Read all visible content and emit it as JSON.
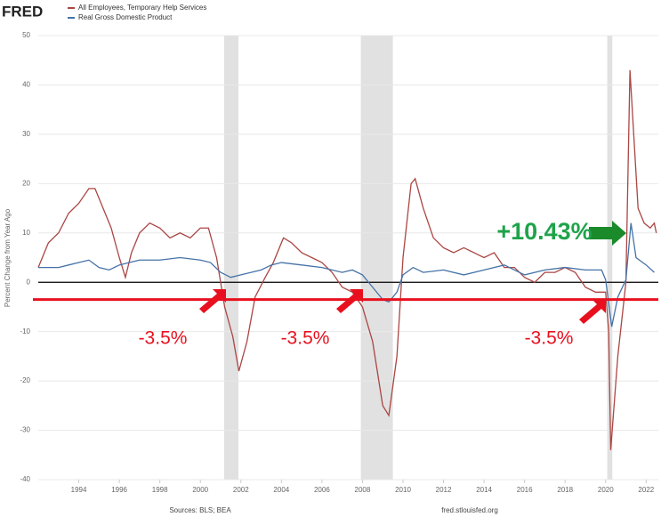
{
  "chart_data": {
    "type": "line",
    "logo": "FRED",
    "y_label": "Percent Change from Year Ago",
    "source": "Sources: BLS; BEA",
    "site": "fred.stlouisfed.org",
    "xlim": [
      1992,
      2022.6
    ],
    "ylim": [
      -40,
      50
    ],
    "xticks": [
      1994,
      1996,
      1998,
      2000,
      2002,
      2004,
      2006,
      2008,
      2010,
      2012,
      2014,
      2016,
      2018,
      2020,
      2022
    ],
    "yticks": [
      -40,
      -30,
      -20,
      -10,
      0,
      10,
      20,
      30,
      40,
      50
    ],
    "grid": true,
    "zero_line": 0,
    "reference_line": -3.5,
    "recessions": [
      [
        2001.17,
        2001.88
      ],
      [
        2007.92,
        2009.5
      ],
      [
        2020.08,
        2020.33
      ]
    ],
    "annotations": [
      "-3.5%",
      "-3.5%",
      "-3.5%",
      "+10.43%"
    ],
    "series": [
      {
        "name": "All Employees, Temporary Help Services",
        "color": "#aa4643",
        "x": [
          1992,
          1992.5,
          1993,
          1993.5,
          1994,
          1994.5,
          1994.8,
          1995.2,
          1995.6,
          1996,
          1996.3,
          1996.6,
          1997,
          1997.5,
          1998,
          1998.5,
          1999,
          1999.5,
          2000,
          2000.4,
          2000.8,
          2001.2,
          2001.6,
          2001.9,
          2002.3,
          2002.7,
          2003.2,
          2003.6,
          2004.1,
          2004.5,
          2005,
          2005.5,
          2006,
          2006.5,
          2007,
          2007.5,
          2008,
          2008.5,
          2009,
          2009.3,
          2009.7,
          2010,
          2010.4,
          2010.6,
          2011,
          2011.5,
          2012,
          2012.5,
          2013,
          2013.5,
          2014,
          2014.5,
          2015,
          2015.5,
          2016,
          2016.5,
          2017,
          2017.5,
          2018,
          2018.5,
          2019,
          2019.5,
          2020,
          2020.15,
          2020.25,
          2020.6,
          2021,
          2021.2,
          2021.6,
          2021.9,
          2022.2,
          2022.4,
          2022.5
        ],
        "values": [
          3,
          8,
          10,
          14,
          16,
          19,
          19,
          15,
          11,
          5,
          1,
          6,
          10,
          12,
          11,
          9,
          10,
          9,
          11,
          11,
          5,
          -5,
          -11,
          -18,
          -12,
          -3,
          1,
          4,
          9,
          8,
          6,
          5,
          4,
          2,
          -1,
          -2,
          -5,
          -12,
          -25,
          -27,
          -15,
          5,
          20,
          21,
          15,
          9,
          7,
          6,
          7,
          6,
          5,
          6,
          3,
          3,
          1,
          0,
          2,
          2,
          3,
          2,
          -1,
          -2,
          -2,
          -10,
          -34,
          -15,
          0,
          43,
          15,
          12,
          11,
          12,
          10
        ]
      },
      {
        "name": "Real Gross Domestic Product",
        "color": "#4572a7",
        "x": [
          1992,
          1993,
          1993.5,
          1994,
          1994.5,
          1995,
          1995.5,
          1996,
          1996.5,
          1997,
          1998,
          1999,
          2000,
          2000.5,
          2001,
          2001.5,
          2002,
          2002.5,
          2003,
          2003.5,
          2004,
          2005,
          2006,
          2007,
          2007.5,
          2008,
          2008.5,
          2009,
          2009.3,
          2009.7,
          2010,
          2010.5,
          2011,
          2012,
          2013,
          2014,
          2015,
          2016,
          2017,
          2018,
          2019,
          2019.8,
          2020,
          2020.3,
          2020.6,
          2021,
          2021.25,
          2021.5,
          2022,
          2022.4
        ],
        "values": [
          3,
          3,
          3.5,
          4,
          4.5,
          3,
          2.5,
          3.5,
          4,
          4.5,
          4.5,
          5,
          4.5,
          4,
          2,
          1,
          1.5,
          2,
          2.5,
          3.5,
          4,
          3.5,
          3,
          2,
          2.5,
          1.5,
          -1,
          -3.5,
          -4,
          -2,
          1.5,
          3,
          2,
          2.5,
          1.5,
          2.5,
          3.5,
          1.5,
          2.5,
          3,
          2.5,
          2.5,
          0.5,
          -9,
          -3,
          0.5,
          12,
          5,
          3.5,
          2
        ]
      }
    ]
  }
}
